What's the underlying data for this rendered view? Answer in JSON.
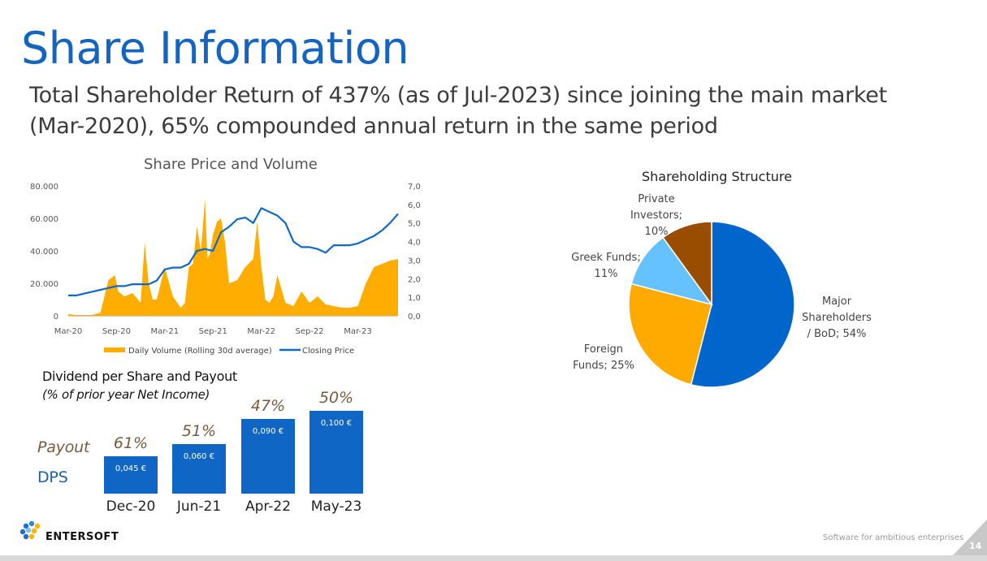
{
  "slide": {
    "title": "Share Information",
    "subtitle": "Total Shareholder Return of 437% (as of Jul-2023) since joining the main market (Mar-2020), 65% compounded annual return in the same period",
    "footer": "Software for ambitious enterprises",
    "page_number": "14",
    "logo_text": "ENTERSOFT"
  },
  "colors": {
    "title": "#1565c0",
    "volume": "#ffad00",
    "price": "#0e6ac8",
    "bar": "#0f66c4",
    "pie_major": "#0066cc",
    "pie_foreign": "#ffaa00",
    "pie_greek": "#66c2ff",
    "pie_private": "#994d00"
  },
  "chart_data": [
    {
      "type": "line",
      "title": "Share Price and Volume",
      "x_ticks": [
        "Mar-20",
        "Sep-20",
        "Mar-21",
        "Sep-21",
        "Mar-22",
        "Sep-22",
        "Mar-23"
      ],
      "y_left_ticks": [
        "0",
        "20.000",
        "40.000",
        "60.000",
        "80.000"
      ],
      "y_right_ticks": [
        "0,0",
        "1,0",
        "2,0",
        "3,0",
        "4,0",
        "5,0",
        "6,0",
        "7,0"
      ],
      "ylim_left": [
        0,
        80000
      ],
      "ylim_right": [
        0,
        7
      ],
      "xlim": [
        0,
        41
      ],
      "legend_position": "bottom",
      "series": [
        {
          "name": "Daily Volume (Rolling 30d average)",
          "kind": "area",
          "axis": "left",
          "x": [
            0,
            1,
            2,
            3,
            4,
            5,
            5.8,
            6.2,
            7,
            8,
            9,
            9.5,
            10,
            10.5,
            11,
            12,
            13,
            14,
            14.5,
            15,
            15.5,
            16,
            16.5,
            17,
            17.3,
            17.6,
            18,
            18.5,
            19,
            19.5,
            20,
            21,
            22,
            23,
            23.5,
            24,
            24.5,
            25,
            25.5,
            26,
            27,
            28,
            29,
            30,
            31,
            32,
            33,
            34,
            35,
            36,
            37,
            38,
            39,
            40,
            41
          ],
          "values": [
            1000,
            500,
            500,
            500,
            2000,
            22000,
            25000,
            15000,
            12000,
            14000,
            8000,
            45000,
            20000,
            10000,
            10000,
            30000,
            12000,
            5000,
            8000,
            30000,
            32000,
            55000,
            40000,
            72000,
            35000,
            38000,
            50000,
            58000,
            60000,
            45000,
            20000,
            22000,
            30000,
            35000,
            58000,
            30000,
            10000,
            8000,
            12000,
            25000,
            8000,
            6000,
            15000,
            8000,
            12000,
            7000,
            6000,
            5000,
            5000,
            6000,
            20000,
            30000,
            32000,
            34000,
            35000
          ]
        },
        {
          "name": "Closing Price",
          "kind": "line",
          "axis": "right",
          "x": [
            0,
            1,
            2,
            3,
            4,
            5,
            6,
            7,
            8,
            9,
            10,
            11,
            12,
            13,
            14,
            15,
            16,
            17,
            18,
            19,
            20,
            21,
            22,
            23,
            24,
            25,
            26,
            27,
            28,
            29,
            30,
            31,
            32,
            33,
            34,
            35,
            36,
            37,
            38,
            39,
            40,
            41
          ],
          "values": [
            1.1,
            1.1,
            1.2,
            1.3,
            1.4,
            1.5,
            1.6,
            1.6,
            1.7,
            1.7,
            1.7,
            1.9,
            2.5,
            2.6,
            2.6,
            2.8,
            3.5,
            3.6,
            3.5,
            4.5,
            4.8,
            5.2,
            5.3,
            5.0,
            5.8,
            5.6,
            5.4,
            5.0,
            4.0,
            3.7,
            3.7,
            3.6,
            3.4,
            3.8,
            3.8,
            3.8,
            3.9,
            4.1,
            4.3,
            4.6,
            5.0,
            5.5
          ]
        }
      ]
    },
    {
      "type": "pie",
      "title": "Shareholding Structure",
      "slices": [
        {
          "label": "Major Shareholders / BoD",
          "value": 54
        },
        {
          "label": "Foreign Funds",
          "value": 25
        },
        {
          "label": "Greek Funds",
          "value": 11
        },
        {
          "label": "Private Investors",
          "value": 10
        }
      ]
    },
    {
      "type": "bar",
      "title": "Dividend per Share and Payout",
      "subtitle": "(% of prior year Net Income)",
      "categories": [
        "Dec-20",
        "Jun-21",
        "Apr-22",
        "May-23"
      ],
      "series": [
        {
          "name": "DPS",
          "values": [
            0.045,
            0.06,
            0.09,
            0.1
          ]
        },
        {
          "name": "Payout",
          "values": [
            61,
            51,
            47,
            50
          ]
        }
      ]
    }
  ],
  "dividend": {
    "title": "Dividend per Share and Payout",
    "subtitle": "(% of prior year Net Income)",
    "payout_label": "Payout",
    "dps_label": "DPS",
    "bars": [
      {
        "category": "Dec-20",
        "dps_label": "0,045 €",
        "payout_label": "61%"
      },
      {
        "category": "Jun-21",
        "dps_label": "0,060 €",
        "payout_label": "51%"
      },
      {
        "category": "Apr-22",
        "dps_label": "0,090 €",
        "payout_label": "47%"
      },
      {
        "category": "May-23",
        "dps_label": "0,100 €",
        "payout_label": "50%"
      }
    ]
  },
  "pie_labels": {
    "major": [
      "Major",
      "Shareholders",
      "/ BoD; 54%"
    ],
    "foreign": [
      "Foreign",
      "Funds; 25%"
    ],
    "greek": [
      "Greek Funds;",
      "11%"
    ],
    "private": [
      "Private",
      "Investors; 10%"
    ]
  }
}
